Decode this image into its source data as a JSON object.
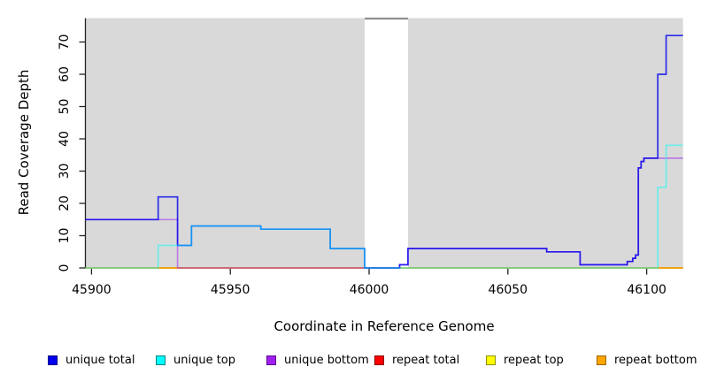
{
  "chart_data": {
    "type": "line",
    "subtype": "step-coverage-plot",
    "title": "",
    "xlabel": "Coordinate in Reference Genome",
    "ylabel": "Read Coverage Depth",
    "xlim": [
      45897.8,
      46113.1
    ],
    "ylim": [
      0,
      77.4
    ],
    "x_ticks": [
      45900,
      45950,
      46000,
      46050,
      46100
    ],
    "y_ticks": [
      0,
      10,
      20,
      30,
      40,
      50,
      60,
      70
    ],
    "grid": false,
    "plot_bg": "#d9d9d9",
    "axis_color": "#222222",
    "masked_region": {
      "x_start": 45998.4,
      "x_end": 46014,
      "fill": "#ffffff",
      "top_edge_color": "#8f8f8f"
    },
    "legend_position": "bottom",
    "legend": [
      {
        "label": "unique total",
        "color": "#0000ee",
        "border": "#000080"
      },
      {
        "label": "unique top",
        "color": "#00ffff",
        "border": "#008080"
      },
      {
        "label": "unique bottom",
        "color": "#a020f0",
        "border": "#5c0a8e"
      },
      {
        "label": "repeat total",
        "color": "#ff0000",
        "border": "#8b0000"
      },
      {
        "label": "repeat top",
        "color": "#ffff00",
        "border": "#8f8f00"
      },
      {
        "label": "repeat bottom",
        "color": "#ffa500",
        "border": "#9c6500"
      }
    ],
    "series": [
      {
        "name": "repeat total",
        "color": "#ff0000",
        "opacity": 0.5,
        "steps": [
          [
            45897.8,
            0
          ]
        ]
      },
      {
        "name": "repeat top",
        "color": "#ffff00",
        "opacity": 0.55,
        "steps": [
          [
            45897.8,
            0
          ]
        ]
      },
      {
        "name": "repeat bottom",
        "color": "#ffa500",
        "opacity": 0.6,
        "steps": [
          [
            45897.8,
            0
          ]
        ]
      },
      {
        "name": "unique bottom",
        "color": "#a020f0",
        "opacity": 0.5,
        "steps": [
          [
            45897.8,
            15
          ],
          [
            45931,
            0
          ],
          [
            46011,
            1
          ],
          [
            46014,
            6
          ],
          [
            46064,
            5
          ],
          [
            46076,
            1
          ],
          [
            46093,
            2
          ],
          [
            46095,
            3
          ],
          [
            46096,
            4
          ],
          [
            46097,
            31
          ],
          [
            46098,
            33
          ],
          [
            46099,
            34
          ]
        ]
      },
      {
        "name": "unique total",
        "color": "#0000ee",
        "opacity": 0.8,
        "steps": [
          [
            45897.8,
            15
          ],
          [
            45924,
            22
          ],
          [
            45931,
            7
          ],
          [
            45936,
            13
          ],
          [
            45961,
            12
          ],
          [
            45986,
            6
          ],
          [
            45998.4,
            0
          ],
          [
            46011,
            1
          ],
          [
            46014,
            6
          ],
          [
            46064,
            5
          ],
          [
            46076,
            1
          ],
          [
            46093,
            2
          ],
          [
            46095,
            3
          ],
          [
            46096,
            4
          ],
          [
            46097,
            31
          ],
          [
            46098,
            33
          ],
          [
            46099,
            34
          ],
          [
            46104,
            60
          ],
          [
            46107,
            72
          ]
        ]
      },
      {
        "name": "unique top",
        "color": "#00ffff",
        "opacity": 0.5,
        "steps": [
          [
            45897.8,
            0
          ],
          [
            45924,
            7
          ],
          [
            45936,
            13
          ],
          [
            45961,
            12
          ],
          [
            45986,
            6
          ],
          [
            45998.4,
            0
          ],
          [
            46104,
            25
          ],
          [
            46107,
            38
          ]
        ]
      }
    ]
  }
}
